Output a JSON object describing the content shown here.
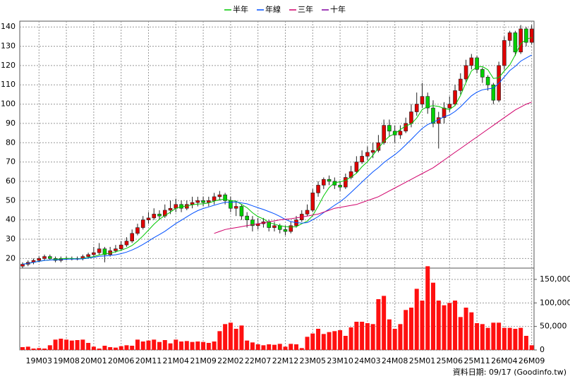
{
  "chart_data": {
    "type": "candlestick",
    "source": "資料日期: 09/17 (Goodinfo.tw)",
    "grid": true,
    "categories": [
      null,
      null,
      null,
      "19M03",
      null,
      null,
      null,
      null,
      "19M08",
      null,
      null,
      null,
      null,
      "20M01",
      null,
      null,
      null,
      null,
      "20M06",
      null,
      null,
      null,
      null,
      "20M11",
      null,
      null,
      null,
      null,
      "21M04",
      null,
      null,
      null,
      null,
      "21M09",
      null,
      null,
      null,
      null,
      "22M02",
      null,
      null,
      null,
      null,
      "22M07",
      null,
      null,
      null,
      null,
      "22M12",
      null,
      null,
      null,
      null,
      "23M05",
      null,
      null,
      null,
      null,
      "23M10",
      null,
      null,
      null,
      null,
      "24M03",
      null,
      null,
      null,
      null,
      "24M08",
      null,
      null,
      null,
      null,
      "25M01",
      null,
      null,
      null,
      null,
      "25M06",
      null,
      null,
      null,
      null,
      "25M11",
      null,
      null,
      null,
      null,
      "26M04",
      null,
      null,
      null,
      null,
      "26M09"
    ],
    "ohlc": {
      "up_color": "#e00000",
      "down_color": "#00d000",
      "open": [
        16,
        17,
        18,
        19,
        20,
        21,
        20,
        19,
        20,
        20,
        20,
        20,
        21,
        22,
        23,
        25,
        22,
        24,
        25,
        27,
        29,
        33,
        36,
        40,
        41,
        43,
        42,
        45,
        46,
        48,
        46,
        48,
        49,
        50,
        49,
        50,
        52,
        53,
        50,
        46,
        47,
        42,
        40,
        37,
        38,
        39,
        36,
        37,
        35,
        34,
        37,
        40,
        43,
        45,
        54,
        58,
        61,
        60,
        58,
        57,
        62,
        65,
        70,
        73,
        75,
        76,
        80,
        89,
        86,
        84,
        86,
        90,
        96,
        100,
        104,
        98,
        90,
        93,
        98,
        100,
        107,
        113,
        120,
        124,
        118,
        114,
        110,
        102,
        120,
        133,
        137,
        127,
        139,
        132
      ],
      "high": [
        18,
        19,
        20,
        21,
        22,
        22,
        21,
        21,
        21,
        21,
        21,
        22,
        23,
        26,
        28,
        26,
        26,
        27,
        29,
        31,
        35,
        38,
        42,
        44,
        46,
        45,
        48,
        50,
        51,
        50,
        50,
        52,
        52,
        52,
        52,
        54,
        55,
        54,
        52,
        50,
        48,
        44,
        42,
        41,
        41,
        40,
        39,
        38,
        37,
        39,
        42,
        45,
        48,
        56,
        60,
        62,
        63,
        62,
        60,
        64,
        68,
        73,
        76,
        78,
        80,
        84,
        92,
        92,
        89,
        89,
        93,
        100,
        106,
        111,
        106,
        102,
        96,
        101,
        104,
        110,
        116,
        123,
        126,
        125,
        119,
        115,
        111,
        122,
        135,
        138,
        138,
        141,
        140,
        141
      ],
      "low": [
        15,
        16,
        17,
        18,
        19,
        19,
        18,
        18,
        19,
        19,
        19,
        19,
        20,
        21,
        22,
        18,
        21,
        23,
        24,
        26,
        28,
        32,
        35,
        38,
        40,
        40,
        41,
        43,
        44,
        44,
        45,
        46,
        47,
        47,
        47,
        48,
        50,
        48,
        44,
        42,
        40,
        36,
        34,
        35,
        36,
        34,
        34,
        33,
        32,
        33,
        36,
        39,
        42,
        44,
        52,
        56,
        58,
        56,
        55,
        56,
        61,
        64,
        69,
        71,
        72,
        75,
        79,
        83,
        80,
        82,
        85,
        88,
        94,
        98,
        95,
        88,
        77,
        90,
        96,
        99,
        105,
        111,
        118,
        116,
        111,
        107,
        100,
        101,
        118,
        130,
        125,
        126,
        130,
        131
      ],
      "close": [
        17,
        18,
        19,
        20,
        21,
        20,
        19,
        20,
        20,
        20,
        20,
        21,
        22,
        23,
        25,
        22,
        24,
        25,
        27,
        29,
        33,
        36,
        40,
        41,
        43,
        42,
        45,
        46,
        48,
        46,
        48,
        49,
        50,
        49,
        50,
        52,
        53,
        50,
        46,
        47,
        42,
        40,
        37,
        38,
        39,
        36,
        37,
        35,
        34,
        37,
        40,
        43,
        45,
        54,
        58,
        61,
        60,
        58,
        57,
        62,
        65,
        70,
        73,
        75,
        76,
        80,
        89,
        86,
        84,
        86,
        90,
        96,
        100,
        104,
        98,
        90,
        93,
        98,
        100,
        107,
        113,
        120,
        124,
        118,
        114,
        110,
        102,
        120,
        133,
        137,
        127,
        139,
        132,
        139
      ]
    },
    "series": [
      {
        "name": "半年",
        "color": "#00c800",
        "values": [
          17,
          17.5,
          18,
          18.5,
          19,
          19.2,
          19.5,
          19.8,
          20,
          20,
          19.8,
          20,
          20.5,
          21,
          21.8,
          22.2,
          22.8,
          23.5,
          24.3,
          25.3,
          26.7,
          29,
          31.7,
          34.7,
          37.7,
          40.3,
          42.3,
          44,
          46,
          46.8,
          47.2,
          47.8,
          48.2,
          48.3,
          48.8,
          49.7,
          50.5,
          50.7,
          50,
          49.7,
          48,
          46.3,
          43.7,
          41.7,
          40.5,
          38.7,
          37.8,
          37,
          36.5,
          36.3,
          36.5,
          38,
          39.3,
          42.2,
          47.2,
          52.5,
          56.8,
          59.3,
          59.7,
          60.5,
          62.2,
          64.2,
          67.5,
          70.2,
          73.5,
          77.2,
          80.7,
          83.3,
          84.7,
          86.8,
          88.7,
          89.8,
          92.8,
          97.2,
          98.7,
          99.2,
          98.8,
          97.8,
          97.2,
          99.3,
          104.5,
          111.3,
          117.2,
          119.2,
          119.5,
          117.8,
          113.3,
          113.7,
          117.2,
          120.3,
          125.5,
          131.3,
          133.6,
          134.5
        ]
      },
      {
        "name": "年線",
        "color": "#0050ff",
        "values": [
          17,
          17.5,
          18,
          18.5,
          19,
          19.2,
          19.3,
          19.4,
          19.6,
          19.7,
          19.7,
          19.8,
          20.2,
          20.6,
          21.1,
          21.3,
          21.6,
          21.9,
          22.5,
          23.3,
          24.4,
          25.7,
          27.3,
          29,
          30.8,
          32.4,
          34.1,
          36.1,
          38.1,
          39.8,
          41.6,
          43.3,
          44.8,
          45.9,
          46.7,
          47.6,
          48.4,
          49.1,
          49.2,
          49.3,
          48.8,
          48.3,
          47.3,
          46.3,
          45.4,
          44.3,
          43.2,
          41.8,
          40.2,
          39.1,
          38.6,
          38.3,
          38.6,
          40,
          41.7,
          43.8,
          45.6,
          47.6,
          49.4,
          51.6,
          54.2,
          56.9,
          59.6,
          62.3,
          64.9,
          67.1,
          69.7,
          71.8,
          73.8,
          76.2,
          78.9,
          81.7,
          84.6,
          87.4,
          89.4,
          90.6,
          92,
          93.5,
          94.4,
          96.2,
          98.6,
          101.5,
          104.3,
          106.2,
          107.4,
          107.9,
          108.3,
          110.8,
          114.1,
          117.4,
          119.6,
          122.3,
          123.9,
          125.5
        ]
      },
      {
        "name": "三年",
        "color": "#d0006a",
        "values": [
          null,
          null,
          null,
          null,
          null,
          null,
          null,
          null,
          null,
          null,
          null,
          null,
          null,
          null,
          null,
          null,
          null,
          null,
          null,
          null,
          null,
          null,
          null,
          null,
          null,
          null,
          null,
          null,
          null,
          null,
          null,
          null,
          null,
          null,
          null,
          33,
          34,
          35,
          35.5,
          36,
          36.5,
          37,
          37.5,
          38,
          38.5,
          39,
          39.5,
          40,
          40.3,
          40.6,
          41,
          41.5,
          42,
          42.5,
          43,
          44,
          45,
          46,
          46.5,
          47,
          47.5,
          48,
          49,
          50,
          51,
          52,
          53.5,
          55,
          56.5,
          58,
          59.5,
          61,
          62.5,
          64,
          65.5,
          67,
          69,
          71,
          73,
          75,
          77,
          79,
          81,
          83,
          85,
          87,
          89,
          91,
          93,
          95,
          97,
          98.5,
          100,
          101
        ]
      },
      {
        "name": "十年",
        "color": "#8000a0",
        "values": [
          null,
          null,
          null,
          null,
          null,
          null,
          null,
          null,
          null,
          null,
          null,
          null,
          null,
          null,
          null,
          null,
          null,
          null,
          null,
          null,
          null,
          null,
          null,
          null,
          null,
          null,
          null,
          null,
          null,
          null,
          null,
          null,
          null,
          null,
          null,
          null,
          null,
          null,
          null,
          null,
          null,
          null,
          null,
          null,
          null,
          null,
          null,
          null,
          null,
          null,
          null,
          null,
          null,
          null,
          null,
          null,
          null,
          null,
          null,
          null,
          null,
          null,
          null,
          null,
          null,
          null,
          null,
          null,
          null,
          null,
          null,
          null,
          null,
          null,
          null,
          null,
          null,
          null,
          null,
          null,
          null,
          null,
          null,
          null,
          null,
          null,
          null,
          null,
          null,
          null,
          null,
          null,
          null,
          null
        ]
      }
    ],
    "ylim": [
      15,
      143
    ],
    "yticks": [
      20,
      30,
      40,
      50,
      60,
      70,
      80,
      90,
      100,
      110,
      120,
      130,
      140
    ],
    "volume": {
      "color": "#ff1010",
      "values": [
        6000,
        7000,
        3000,
        4000,
        3000,
        10000,
        22000,
        24000,
        22000,
        20000,
        21000,
        22000,
        15000,
        7000,
        3000,
        9000,
        6000,
        5000,
        8000,
        10000,
        9000,
        22000,
        18000,
        20000,
        22000,
        17000,
        21000,
        14000,
        22000,
        18000,
        19000,
        17000,
        18000,
        17000,
        15000,
        18000,
        40000,
        55000,
        58000,
        45000,
        52000,
        20000,
        16000,
        12000,
        10000,
        12000,
        11000,
        13000,
        7000,
        13000,
        12000,
        4000,
        28000,
        35000,
        45000,
        34000,
        38000,
        40000,
        42000,
        30000,
        48000,
        60000,
        60000,
        57000,
        55000,
        108000,
        115000,
        65000,
        45000,
        55000,
        85000,
        90000,
        130000,
        105000,
        178000,
        143000,
        105000,
        95000,
        100000,
        105000,
        70000,
        90000,
        80000,
        57000,
        55000,
        47000,
        58000,
        58000,
        47000,
        47000,
        45000,
        47000,
        30000,
        10000
      ],
      "ylim": [
        0,
        174000
      ],
      "yticks": [
        0,
        {
          "value": 50000,
          "label": "50,000"
        },
        {
          "value": 100000,
          "label": "100,000"
        },
        {
          "value": 150000,
          "label": "150,000"
        }
      ]
    }
  }
}
